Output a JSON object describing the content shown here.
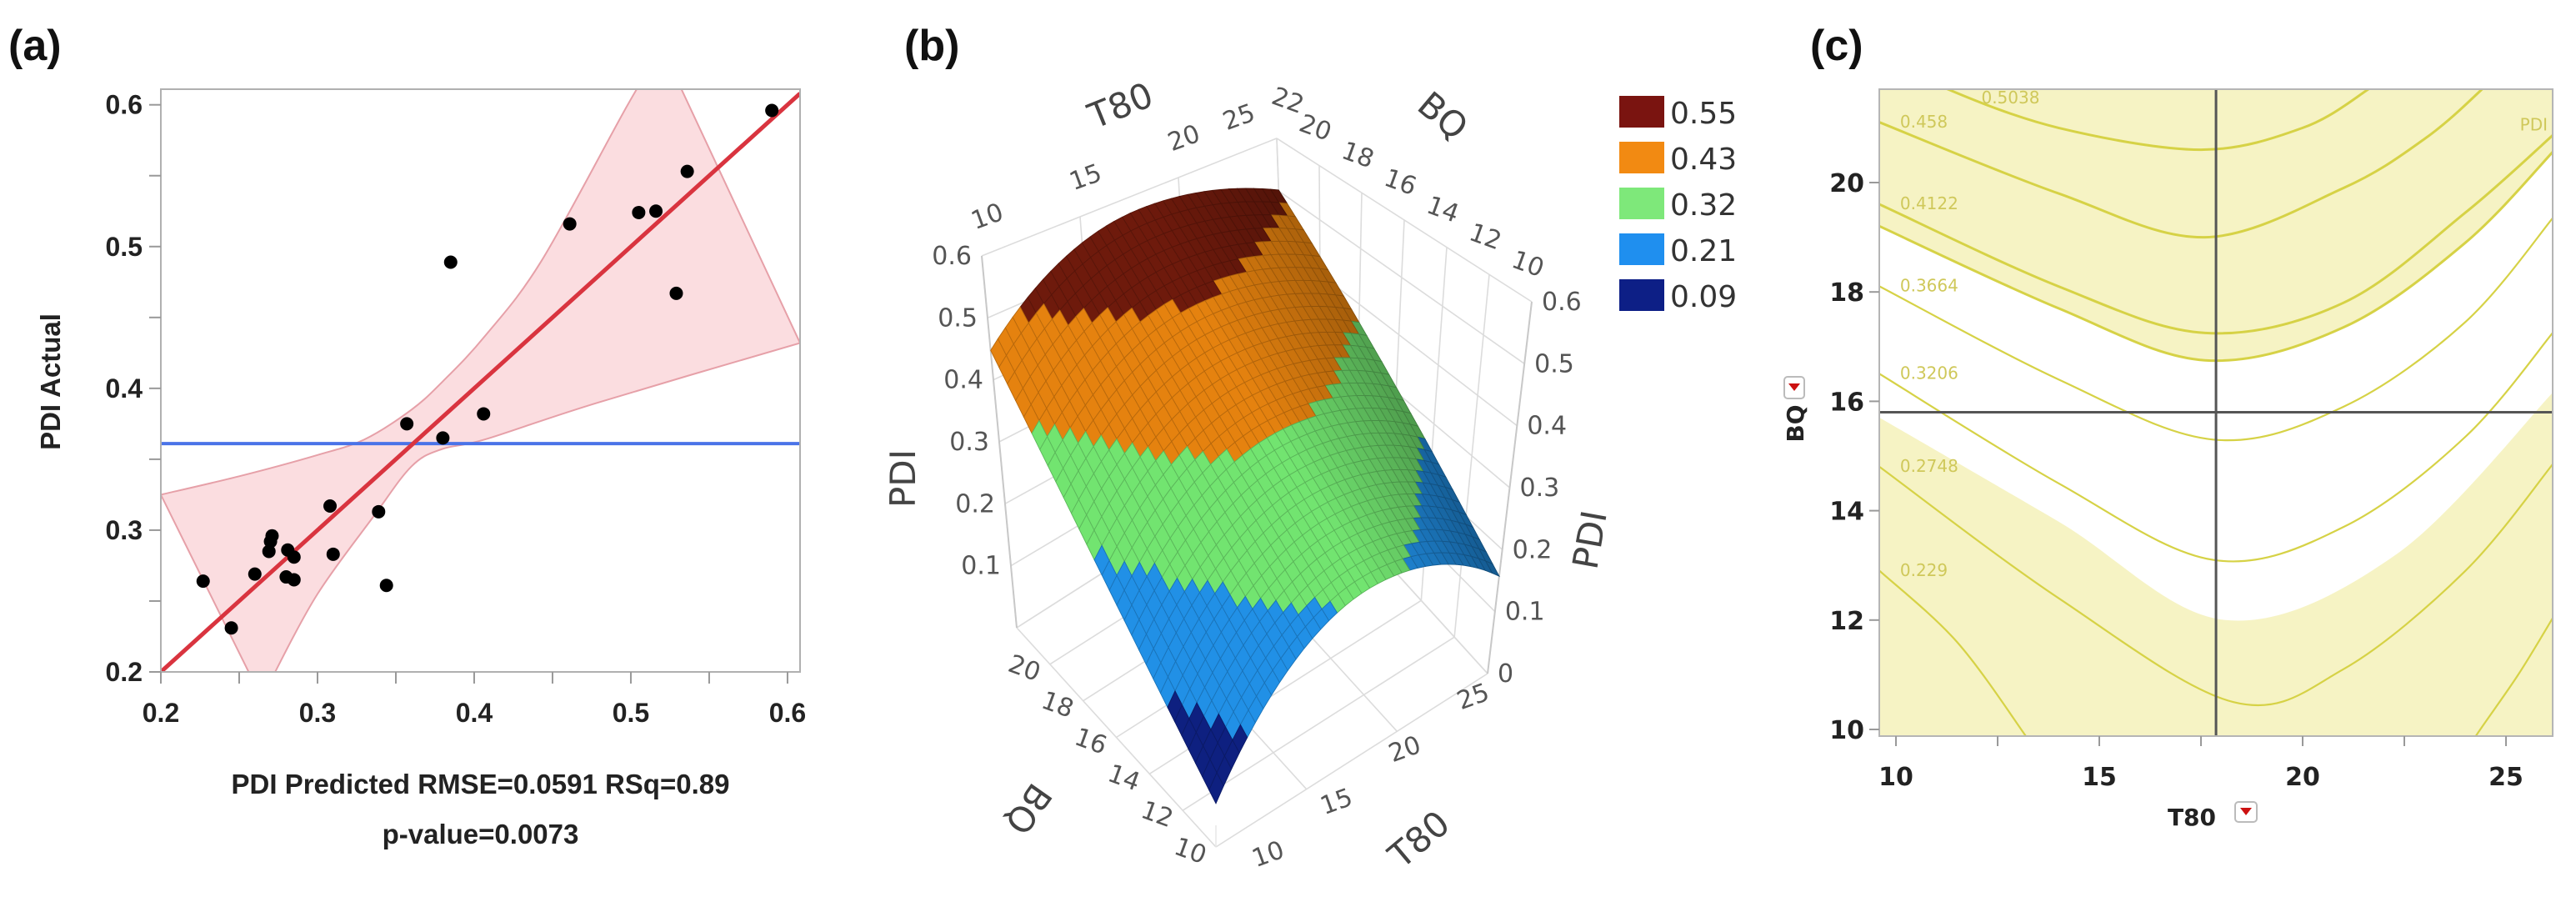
{
  "panels": {
    "a_label": "(a)",
    "b_label": "(b)",
    "c_label": "(c)"
  },
  "chart_data": [
    {
      "type": "scatter",
      "panel": "(a)",
      "xlabel": "PDI Predicted RMSE=0.0591 RSq=0.89",
      "xlabel_line2": "p-value=0.0073",
      "ylabel": "PDI Actual",
      "xlim": [
        0.2,
        0.608
      ],
      "ylim": [
        0.2,
        0.611
      ],
      "xticks": [
        "0.2",
        "0.3",
        "0.4",
        "0.5",
        "0.6"
      ],
      "yticks": [
        "0.2",
        "0.3",
        "0.4",
        "0.5",
        "0.6"
      ],
      "minor_tick_step": 0.05,
      "points": [
        [
          0.227,
          0.264
        ],
        [
          0.245,
          0.231
        ],
        [
          0.26,
          0.269
        ],
        [
          0.27,
          0.292
        ],
        [
          0.271,
          0.296
        ],
        [
          0.269,
          0.285
        ],
        [
          0.281,
          0.286
        ],
        [
          0.285,
          0.281
        ],
        [
          0.28,
          0.267
        ],
        [
          0.285,
          0.265
        ],
        [
          0.308,
          0.317
        ],
        [
          0.31,
          0.283
        ],
        [
          0.339,
          0.313
        ],
        [
          0.344,
          0.261
        ],
        [
          0.357,
          0.375
        ],
        [
          0.38,
          0.365
        ],
        [
          0.406,
          0.382
        ],
        [
          0.385,
          0.489
        ],
        [
          0.461,
          0.516
        ],
        [
          0.505,
          0.524
        ],
        [
          0.516,
          0.525
        ],
        [
          0.529,
          0.467
        ],
        [
          0.536,
          0.553
        ],
        [
          0.59,
          0.596
        ]
      ],
      "fit_line": [
        [
          0.2,
          0.2
        ],
        [
          0.608,
          0.608
        ]
      ],
      "mean_line": 0.361,
      "confidence_band": {
        "upper": [
          [
            0.2,
            0.325
          ],
          [
            0.25,
            0.338
          ],
          [
            0.3,
            0.353
          ],
          [
            0.33,
            0.364
          ],
          [
            0.36,
            0.385
          ],
          [
            0.38,
            0.405
          ],
          [
            0.407,
            0.437
          ],
          [
            0.443,
            0.49
          ],
          [
            0.498,
            0.6
          ],
          [
            0.52,
            0.64
          ]
        ],
        "lower": [
          [
            0.608,
            0.432
          ],
          [
            0.479,
            0.39
          ],
          [
            0.407,
            0.364
          ],
          [
            0.379,
            0.357
          ],
          [
            0.36,
            0.345
          ],
          [
            0.336,
            0.31
          ],
          [
            0.3,
            0.255
          ],
          [
            0.273,
            0.2
          ],
          [
            0.265,
            0.18
          ]
        ]
      },
      "colors": {
        "points": "#000000",
        "fit_line": "#d9343f",
        "mean_line": "#4a73e8",
        "band_fill": "#fbdde0",
        "band_edge": "#e6a0a8"
      }
    },
    {
      "type": "surface",
      "panel": "(b)",
      "x_axis": {
        "label": "T80",
        "range": [
          10,
          25
        ],
        "ticks": [
          "10",
          "15",
          "20",
          "25"
        ]
      },
      "y_axis": {
        "label": "BQ",
        "range": [
          10,
          22
        ],
        "ticks_top": [
          "22",
          "20",
          "18",
          "16",
          "14",
          "12",
          "10"
        ],
        "ticks_bottom": [
          "20",
          "18",
          "16",
          "14",
          "12",
          "10"
        ]
      },
      "z_axis": {
        "label": "PDI",
        "range": [
          0,
          0.6
        ],
        "ticks_left": [
          "0.1",
          "0.2",
          "0.3",
          "0.4",
          "0.5",
          "0.6"
        ],
        "ticks_right": [
          "0",
          "0.1",
          "0.2",
          "0.3",
          "0.4",
          "0.5",
          "0.6"
        ]
      },
      "legend_position": "top-right",
      "legend": [
        {
          "label": "0.55",
          "color": "#7a1410"
        },
        {
          "label": "0.43",
          "color": "#f28a12"
        },
        {
          "label": "0.32",
          "color": "#7ee87a"
        },
        {
          "label": "0.21",
          "color": "#1f8fef"
        },
        {
          "label": "0.09",
          "color": "#0d1f86"
        }
      ]
    },
    {
      "type": "contour",
      "panel": "(c)",
      "xlabel": "T80",
      "ylabel": "BQ",
      "xlim": [
        9.6,
        26.2
      ],
      "ylim": [
        9.87,
        21.7
      ],
      "xticks": [
        "10",
        "15",
        "20",
        "25"
      ],
      "yticks": [
        "10",
        "12",
        "14",
        "16",
        "18",
        "20"
      ],
      "crosshair": {
        "T80": 17.87,
        "BQ": 15.8
      },
      "corner_label": "PDI",
      "contours": [
        {
          "label": "0.5038",
          "points": [
            [
              10.5,
              22.1
            ],
            [
              11.3,
              21.7
            ],
            [
              14,
              21.0
            ],
            [
              17.5,
              20.6
            ],
            [
              20,
              21.0
            ],
            [
              21.6,
              21.7
            ],
            [
              22.4,
              22.2
            ]
          ]
        },
        {
          "label": "0.458",
          "points": [
            [
              9.6,
              21.1
            ],
            [
              14,
              19.8
            ],
            [
              17.6,
              19.0
            ],
            [
              21,
              19.9
            ],
            [
              23,
              20.8
            ],
            [
              24.4,
              21.7
            ],
            [
              25,
              22.2
            ]
          ]
        },
        {
          "label": "0.4122",
          "points": [
            [
              9.6,
              19.6
            ],
            [
              14,
              18.1
            ],
            [
              17.6,
              17.25
            ],
            [
              21,
              17.8
            ],
            [
              24,
              19.45
            ],
            [
              26.2,
              20.9
            ]
          ]
        },
        {
          "label": "",
          "points": [
            [
              9.6,
              19.2
            ],
            [
              14,
              17.7
            ],
            [
              17.6,
              16.75
            ],
            [
              21,
              17.35
            ],
            [
              24,
              18.9
            ],
            [
              26.2,
              20.6
            ]
          ]
        },
        {
          "label": "0.3664",
          "points": [
            [
              9.6,
              18.1
            ],
            [
              14,
              16.4
            ],
            [
              17.8,
              15.3
            ],
            [
              21,
              15.9
            ],
            [
              24,
              17.45
            ],
            [
              26.2,
              19.4
            ]
          ]
        },
        {
          "label": "0.3206",
          "points": [
            [
              9.6,
              16.5
            ],
            [
              14,
              14.5
            ],
            [
              17.8,
              13.1
            ],
            [
              21,
              13.7
            ],
            [
              24,
              15.35
            ],
            [
              26.2,
              17.3
            ]
          ]
        },
        {
          "label": "0.2748",
          "points": [
            [
              9.6,
              14.8
            ],
            [
              14,
              12.4
            ],
            [
              18.3,
              10.5
            ],
            [
              21,
              11.1
            ],
            [
              24,
              12.9
            ],
            [
              26.2,
              14.9
            ]
          ]
        },
        {
          "label": "0.229",
          "points": [
            [
              9.6,
              12.9
            ],
            [
              11.5,
              11.6
            ],
            [
              13.2,
              9.87
            ],
            [
              13.5,
              9.5
            ]
          ]
        },
        {
          "label": "",
          "points": [
            [
              24.0,
              9.5
            ],
            [
              24.25,
              9.87
            ],
            [
              25.3,
              11.0
            ],
            [
              26.2,
              12.1
            ]
          ]
        }
      ],
      "shaded_regions": {
        "upper_boundary": [
          [
            9.6,
            19.2
          ],
          [
            14,
            17.7
          ],
          [
            17.6,
            16.75
          ],
          [
            21,
            17.35
          ],
          [
            24,
            18.9
          ],
          [
            26.2,
            20.6
          ]
        ],
        "lower_boundary": [
          [
            9.6,
            15.7
          ],
          [
            14,
            13.8
          ],
          [
            18.1,
            12.0
          ],
          [
            22.3,
            13.2
          ],
          [
            26.2,
            16.2
          ]
        ]
      },
      "colors": {
        "contour": "#d6d246",
        "shade": "#f6f3c4",
        "crosshair": "#555555",
        "dropdown_arrow": "#cc1111"
      }
    }
  ]
}
